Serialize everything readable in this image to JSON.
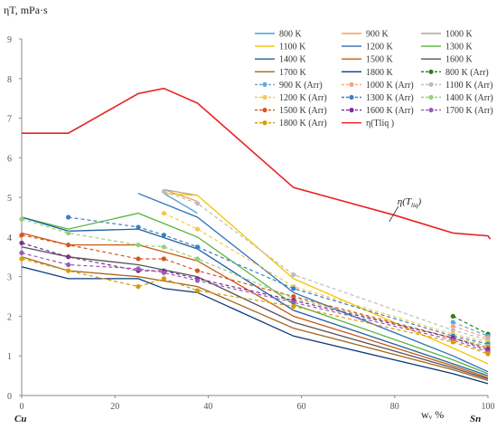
{
  "chart_data": {
    "type": "line",
    "title": "",
    "ylabel": "ηT, mPa·s",
    "xlabel": "wᵥ %",
    "x_end_labels": [
      "Cu",
      "Sn"
    ],
    "xlim": [
      0,
      100
    ],
    "ylim": [
      0,
      9
    ],
    "x_ticks": [
      0,
      20,
      40,
      60,
      80,
      100
    ],
    "y_ticks": [
      0,
      1,
      2,
      3,
      4,
      5,
      6,
      7,
      8,
      9
    ],
    "grid": false,
    "legend_position": "top-right",
    "annotation": {
      "text": "η(T",
      "sub": "liq",
      "close": ")",
      "x": 80,
      "y": 4.5
    },
    "series": [
      {
        "name": "800 K",
        "color": "#4a9fd8",
        "dash": false,
        "marker": false,
        "x": [
          30.5,
          37.7
        ],
        "y": [
          5.1,
          4.6
        ]
      },
      {
        "name": "900 K",
        "color": "#f2a25c",
        "dash": false,
        "marker": false,
        "x": [
          30.5,
          37.7
        ],
        "y": [
          5.2,
          4.9
        ]
      },
      {
        "name": "1000 K",
        "color": "#a9a9a9",
        "dash": false,
        "marker": false,
        "x": [
          30.5,
          37.7
        ],
        "y": [
          5.2,
          5.05
        ]
      },
      {
        "name": "1100 K",
        "color": "#f5c400",
        "dash": false,
        "marker": false,
        "x": [
          30.5,
          37.7,
          58.3,
          92.5,
          100
        ],
        "y": [
          5.1,
          5.05,
          2.95,
          1.2,
          0.8
        ]
      },
      {
        "name": "1200 K",
        "color": "#2f6fba",
        "dash": false,
        "marker": false,
        "x": [
          25,
          37.7,
          58.3,
          92.5,
          100
        ],
        "y": [
          5.1,
          4.5,
          2.6,
          1.0,
          0.6
        ]
      },
      {
        "name": "1300 K",
        "color": "#5cb33d",
        "dash": false,
        "marker": false,
        "x": [
          0,
          10,
          25,
          37.7,
          58.3,
          92.5,
          100
        ],
        "y": [
          4.5,
          4.2,
          4.6,
          4.0,
          2.3,
          0.9,
          0.55
        ]
      },
      {
        "name": "1400 K",
        "color": "#1f5fa0",
        "dash": false,
        "marker": false,
        "x": [
          0,
          10,
          25,
          37.7,
          58.3,
          92.5,
          100
        ],
        "y": [
          4.5,
          4.15,
          4.2,
          3.7,
          2.15,
          0.8,
          0.5
        ]
      },
      {
        "name": "1500 K",
        "color": "#c85a14",
        "dash": false,
        "marker": false,
        "x": [
          0,
          10,
          25,
          37.7,
          58.3,
          92.5,
          100
        ],
        "y": [
          4.1,
          3.8,
          3.8,
          3.4,
          2.0,
          0.75,
          0.45
        ]
      },
      {
        "name": "1600 K",
        "color": "#555555",
        "dash": false,
        "marker": false,
        "x": [
          0,
          10,
          25,
          37.7,
          58.3,
          92.5,
          100
        ],
        "y": [
          3.75,
          3.5,
          3.3,
          3.0,
          1.85,
          0.7,
          0.42
        ]
      },
      {
        "name": "1700 K",
        "color": "#a6661c",
        "dash": false,
        "marker": false,
        "x": [
          0,
          10,
          25,
          37.7,
          58.3,
          92.5,
          100
        ],
        "y": [
          3.5,
          3.15,
          3.0,
          2.75,
          1.7,
          0.65,
          0.38
        ]
      },
      {
        "name": "1800 K",
        "color": "#0a3a7a",
        "dash": false,
        "marker": false,
        "x": [
          0,
          10,
          25,
          30.5,
          37.7,
          58.3,
          92.5,
          100
        ],
        "y": [
          3.25,
          2.95,
          2.95,
          2.7,
          2.6,
          1.5,
          0.55,
          0.3
        ]
      },
      {
        "name": "800 K (Arr)",
        "color": "#2e7d1e",
        "dash": true,
        "marker": true,
        "x": [
          92.5,
          100
        ],
        "y": [
          2.0,
          1.55
        ]
      },
      {
        "name": "900 K (Arr)",
        "color": "#5aa9e6",
        "dash": true,
        "marker": true,
        "x": [
          92.5,
          100
        ],
        "y": [
          1.85,
          1.5
        ]
      },
      {
        "name": "1000 K (Arr)",
        "color": "#f4a582",
        "dash": true,
        "marker": true,
        "x": [
          92.5,
          100
        ],
        "y": [
          1.75,
          1.45
        ]
      },
      {
        "name": "1100 K (Arr)",
        "color": "#bdbdbd",
        "dash": true,
        "marker": true,
        "x": [
          30.5,
          37.7,
          58.3,
          92.5,
          100
        ],
        "y": [
          5.15,
          4.85,
          3.05,
          1.65,
          1.4
        ]
      },
      {
        "name": "1200 K (Arr)",
        "color": "#f6c74a",
        "dash": true,
        "marker": true,
        "x": [
          30.5,
          37.7,
          58.3,
          92.5,
          100
        ],
        "y": [
          4.6,
          4.2,
          2.75,
          1.55,
          1.35
        ]
      },
      {
        "name": "1300 K (Arr)",
        "color": "#3a7fc4",
        "dash": true,
        "marker": true,
        "x": [
          10,
          25,
          30.5,
          37.7,
          58.3,
          92.5,
          100
        ],
        "y": [
          4.5,
          4.25,
          4.05,
          3.75,
          2.7,
          1.5,
          1.3
        ]
      },
      {
        "name": "1400 K (Arr)",
        "color": "#94d07a",
        "dash": true,
        "marker": true,
        "x": [
          0,
          10,
          25,
          30.5,
          37.7,
          58.3,
          92.5,
          100
        ],
        "y": [
          4.45,
          4.1,
          3.8,
          3.75,
          3.45,
          2.45,
          1.45,
          1.25
        ]
      },
      {
        "name": "1500 K (Arr)",
        "color": "#d9541a",
        "dash": true,
        "marker": true,
        "x": [
          0,
          10,
          25,
          30.5,
          37.7,
          58.3,
          92.5,
          100
        ],
        "y": [
          4.05,
          3.8,
          3.45,
          3.45,
          3.15,
          2.5,
          1.45,
          1.2
        ]
      },
      {
        "name": "1600 K (Arr)",
        "color": "#7a2f8f",
        "dash": true,
        "marker": true,
        "x": [
          0,
          10,
          25,
          30.5,
          37.7,
          58.3,
          92.5,
          100
        ],
        "y": [
          3.85,
          3.5,
          3.15,
          3.15,
          2.95,
          2.4,
          1.45,
          1.15
        ]
      },
      {
        "name": "1700 K (Arr)",
        "color": "#9b59b6",
        "dash": true,
        "marker": true,
        "x": [
          0,
          10,
          25,
          30.5,
          37.7,
          58.3,
          92.5,
          100
        ],
        "y": [
          3.6,
          3.3,
          3.2,
          3.1,
          2.9,
          2.35,
          1.4,
          1.1
        ]
      },
      {
        "name": "1800 K (Arr)",
        "color": "#d99a00",
        "dash": true,
        "marker": true,
        "x": [
          0,
          10,
          25,
          30.5,
          37.7,
          58.3,
          92.5,
          100
        ],
        "y": [
          3.45,
          3.15,
          2.75,
          2.95,
          2.65,
          2.25,
          1.35,
          1.05
        ]
      },
      {
        "name": "η(Tliq )",
        "color": "#e82020",
        "dash": false,
        "marker": false,
        "x": [
          0,
          10,
          25,
          30.5,
          37.7,
          58.3,
          80,
          92.5,
          100,
          100.5
        ],
        "y": [
          6.62,
          6.62,
          7.62,
          7.75,
          7.38,
          5.25,
          4.55,
          4.1,
          4.03,
          3.95
        ]
      }
    ]
  }
}
